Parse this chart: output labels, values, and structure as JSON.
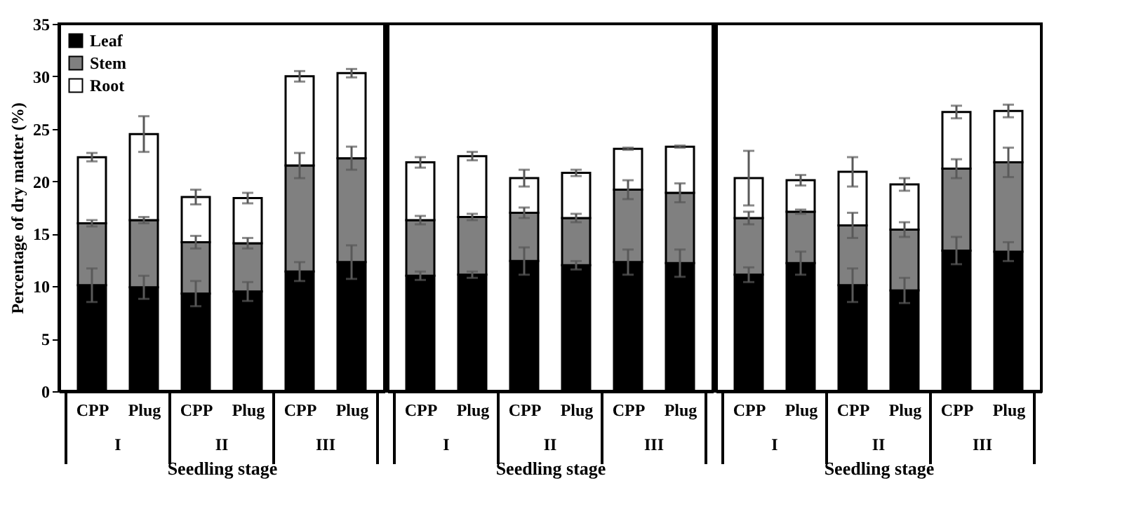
{
  "chart_data": [
    {
      "type": "bar",
      "stacked": true,
      "ylabel": "Percentage of dry matter (%)",
      "xlabel": "Seedling stage",
      "categories": [
        "CPP",
        "Plug",
        "CPP",
        "Plug",
        "CPP",
        "Plug"
      ],
      "annotations": [
        "I",
        "II",
        "III"
      ],
      "ylim": [
        0,
        35
      ],
      "yticks": [
        0,
        5,
        10,
        15,
        20,
        25,
        30,
        35
      ],
      "grid": false,
      "legend": "top left",
      "series": [
        {
          "name": "Leaf",
          "color": "#000000",
          "values": [
            10.1,
            9.9,
            9.3,
            9.5,
            11.4,
            12.3
          ],
          "errors": [
            1.6,
            1.1,
            1.2,
            0.9,
            0.9,
            1.6
          ]
        },
        {
          "name": "Stem",
          "color": "#808080",
          "values": [
            5.9,
            6.4,
            4.9,
            4.6,
            10.1,
            9.9
          ],
          "errors": [
            0.3,
            0.3,
            0.6,
            0.5,
            1.2,
            1.1
          ]
        },
        {
          "name": "Root",
          "color": "#ffffff",
          "values": [
            6.3,
            8.2,
            4.3,
            4.3,
            8.5,
            8.1
          ],
          "errors": [
            0.4,
            1.7,
            0.7,
            0.5,
            0.5,
            0.4
          ]
        }
      ]
    },
    {
      "type": "bar",
      "stacked": true,
      "xlabel": "Seedling stage",
      "categories": [
        "CPP",
        "Plug",
        "CPP",
        "Plug",
        "CPP",
        "Plug"
      ],
      "annotations": [
        "I",
        "II",
        "III"
      ],
      "ylim": [
        0,
        35
      ],
      "grid": false,
      "tick_labels": "x",
      "series": [
        {
          "color": "#000000",
          "values": [
            11.0,
            11.1,
            12.4,
            12.0,
            12.3,
            12.2
          ],
          "errors": [
            0.4,
            0.3,
            1.3,
            0.4,
            1.2,
            1.3
          ]
        },
        {
          "color": "#808080",
          "values": [
            5.3,
            5.5,
            4.6,
            4.5,
            6.9,
            6.7
          ],
          "errors": [
            0.4,
            0.3,
            0.5,
            0.4,
            0.9,
            0.9
          ]
        },
        {
          "color": "#ffffff",
          "values": [
            5.5,
            5.8,
            3.3,
            4.3,
            3.9,
            4.4
          ],
          "errors": [
            0.5,
            0.4,
            0.8,
            0.3,
            0.1,
            0.1
          ]
        }
      ]
    },
    {
      "type": "bar",
      "stacked": true,
      "xlabel": "Seedling stage",
      "categories": [
        "CPP",
        "Plug",
        "CPP",
        "Plug",
        "CPP",
        "Plug"
      ],
      "annotations": [
        "I",
        "II",
        "III"
      ],
      "ylim": [
        0,
        35
      ],
      "grid": false,
      "tick_labels": "x",
      "series": [
        {
          "color": "#000000",
          "values": [
            11.1,
            12.2,
            10.1,
            9.6,
            13.4,
            13.3
          ],
          "errors": [
            0.7,
            1.1,
            1.6,
            1.2,
            1.3,
            0.9
          ]
        },
        {
          "color": "#808080",
          "values": [
            5.4,
            4.9,
            5.7,
            5.8,
            7.8,
            8.5
          ],
          "errors": [
            0.6,
            0.2,
            1.2,
            0.7,
            0.9,
            1.4
          ]
        },
        {
          "color": "#ffffff",
          "values": [
            3.8,
            3.0,
            5.1,
            4.3,
            5.4,
            4.9
          ],
          "errors": [
            2.6,
            0.5,
            1.4,
            0.6,
            0.6,
            0.6
          ]
        }
      ]
    }
  ]
}
